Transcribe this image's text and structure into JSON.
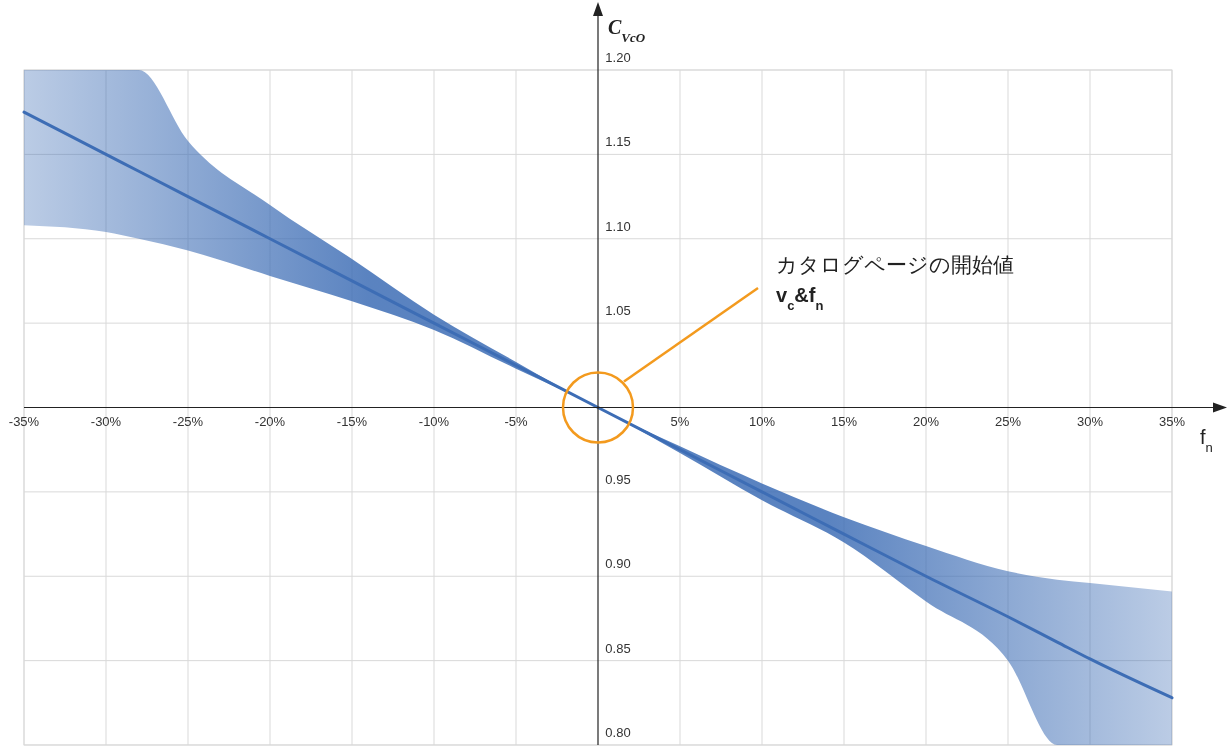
{
  "chart_data": {
    "type": "line",
    "ylabel": "C$_{VcO}$",
    "xlabel": "f$_{n}$",
    "x": [
      -35,
      -30,
      -28,
      -25,
      -20,
      -15,
      -10,
      -5,
      0,
      5,
      10,
      15,
      20,
      25,
      28,
      30,
      35
    ],
    "series": [
      {
        "color": "#3d6db5",
        "values": [
          1.175,
          1.15,
          1.14,
          1.125,
          1.1,
          1.075,
          1.05,
          1.025,
          1.0,
          0.975,
          0.95,
          0.925,
          0.9,
          0.876,
          0.861,
          0.851,
          0.828
        ],
        "lower": [
          1.108,
          1.104,
          1.1,
          1.093,
          1.078,
          1.063,
          1.046,
          1.023,
          1.0,
          0.973,
          0.945,
          0.92,
          0.885,
          0.85,
          0.8,
          0.8,
          0.8
        ],
        "upper": [
          1.2,
          1.2,
          1.2,
          1.158,
          1.12,
          1.088,
          1.055,
          1.027,
          1.0,
          0.977,
          0.955,
          0.935,
          0.918,
          0.903,
          0.898,
          0.896,
          0.891
        ]
      }
    ],
    "xlim": [
      -35,
      35
    ],
    "ylim": [
      0.8,
      1.2
    ],
    "xticks": [
      {
        "value": -35,
        "label": "-35%"
      },
      {
        "value": -30,
        "label": "-30%"
      },
      {
        "value": -25,
        "label": "-25%"
      },
      {
        "value": -20,
        "label": "-20%"
      },
      {
        "value": -15,
        "label": "-15%"
      },
      {
        "value": -10,
        "label": "-10%"
      },
      {
        "value": -5,
        "label": "-5%"
      },
      {
        "value": 5,
        "label": "5%"
      },
      {
        "value": 10,
        "label": "10%"
      },
      {
        "value": 15,
        "label": "15%"
      },
      {
        "value": 20,
        "label": "20%"
      },
      {
        "value": 25,
        "label": "25%"
      },
      {
        "value": 30,
        "label": "30%"
      },
      {
        "value": 35,
        "label": "35%"
      }
    ],
    "yticks": [
      {
        "value": 0.8,
        "label": "0.80"
      },
      {
        "value": 0.85,
        "label": "0.85"
      },
      {
        "value": 0.9,
        "label": "0.90"
      },
      {
        "value": 0.95,
        "label": "0.95"
      },
      {
        "value": 1.05,
        "label": "1.05"
      },
      {
        "value": 1.1,
        "label": "1.10"
      },
      {
        "value": 1.15,
        "label": "1.15"
      },
      {
        "value": 1.2,
        "label": "1.20"
      }
    ],
    "grid": true,
    "annotations": [
      "カタログページの開始値",
      "v$_{c}$&f$_{n}$"
    ]
  }
}
